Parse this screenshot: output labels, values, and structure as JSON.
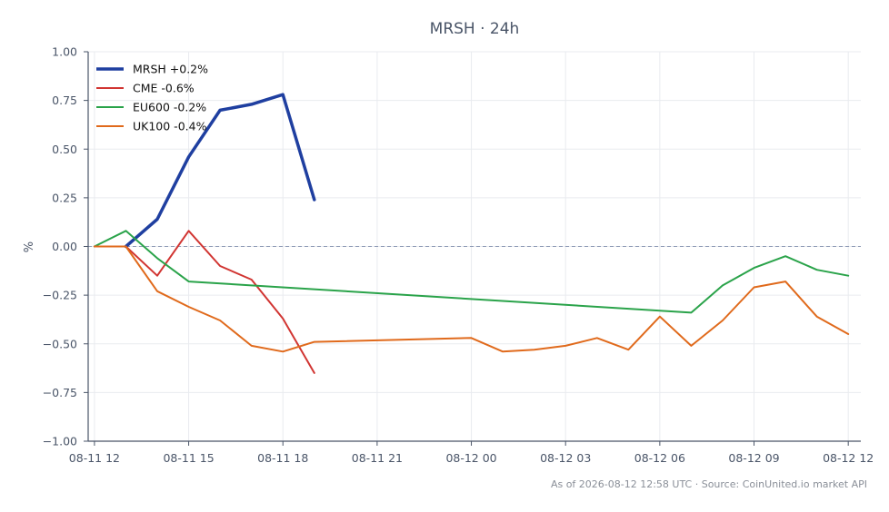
{
  "chart_data": {
    "type": "line",
    "title": "MRSH · 24h",
    "xlabel": "",
    "ylabel": "%",
    "ylim": [
      -1.0,
      1.0
    ],
    "yticks": [
      "1.00",
      "0.75",
      "0.50",
      "0.25",
      "0.00",
      "−0.25",
      "−0.50",
      "−0.75",
      "−1.00"
    ],
    "xlim": [
      11.8,
      36.4
    ],
    "xticks": [
      {
        "x": 12,
        "label": "08-11 12"
      },
      {
        "x": 15,
        "label": "08-11 15"
      },
      {
        "x": 18,
        "label": "08-11 18"
      },
      {
        "x": 21,
        "label": "08-11 21"
      },
      {
        "x": 24,
        "label": "08-12 00"
      },
      {
        "x": 27,
        "label": "08-12 03"
      },
      {
        "x": 30,
        "label": "08-12 06"
      },
      {
        "x": 33,
        "label": "08-12 09"
      },
      {
        "x": 36,
        "label": "08-12 12"
      }
    ],
    "grid": true,
    "legend": "top-left",
    "zero_line": true,
    "series": [
      {
        "name": "MRSH +0.2%",
        "color": "#1f3fa0",
        "width": 3.5,
        "points": [
          [
            13,
            0.0
          ],
          [
            14,
            0.14
          ],
          [
            15,
            0.46
          ],
          [
            16,
            0.7
          ],
          [
            17,
            0.73
          ],
          [
            18,
            0.78
          ],
          [
            19,
            0.24
          ]
        ]
      },
      {
        "name": "CME -0.6%",
        "color": "#d13532",
        "width": 2,
        "points": [
          [
            12,
            0.0
          ],
          [
            13,
            0.0
          ],
          [
            14,
            -0.15
          ],
          [
            15,
            0.08
          ],
          [
            16,
            -0.1
          ],
          [
            17,
            -0.17
          ],
          [
            18,
            -0.37
          ],
          [
            19,
            -0.65
          ]
        ]
      },
      {
        "name": "EU600 -0.2%",
        "color": "#2aa34a",
        "width": 2,
        "points": [
          [
            12,
            0.0
          ],
          [
            13,
            0.08
          ],
          [
            14,
            -0.06
          ],
          [
            15,
            -0.18
          ],
          [
            31,
            -0.34
          ],
          [
            32,
            -0.2
          ],
          [
            33,
            -0.11
          ],
          [
            34,
            -0.05
          ],
          [
            35,
            -0.12
          ],
          [
            36,
            -0.15
          ]
        ]
      },
      {
        "name": "UK100 -0.4%",
        "color": "#e06a1c",
        "width": 2,
        "points": [
          [
            12,
            0.0
          ],
          [
            13,
            0.0
          ],
          [
            14,
            -0.23
          ],
          [
            15,
            -0.31
          ],
          [
            16,
            -0.38
          ],
          [
            17,
            -0.51
          ],
          [
            18,
            -0.54
          ],
          [
            19,
            -0.49
          ],
          [
            24,
            -0.47
          ],
          [
            25,
            -0.54
          ],
          [
            26,
            -0.53
          ],
          [
            27,
            -0.51
          ],
          [
            28,
            -0.47
          ],
          [
            29,
            -0.53
          ],
          [
            30,
            -0.36
          ],
          [
            31,
            -0.51
          ],
          [
            32,
            -0.38
          ],
          [
            33,
            -0.21
          ],
          [
            34,
            -0.18
          ],
          [
            35,
            -0.36
          ],
          [
            36,
            -0.45
          ]
        ]
      }
    ],
    "footer": "As of 2026-08-12 12:58 UTC · Source: CoinUnited.io market API"
  }
}
